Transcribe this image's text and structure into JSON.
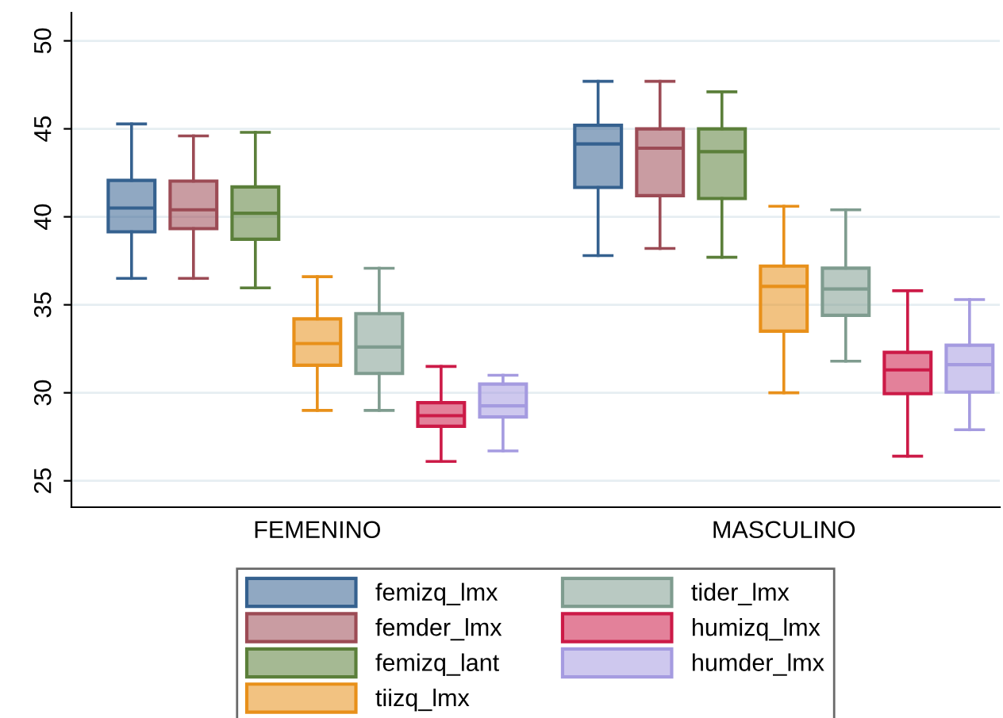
{
  "chart_data": {
    "type": "box",
    "categories": [
      "FEMENINO",
      "MASCULINO"
    ],
    "ylim": [
      23.5,
      51.6
    ],
    "yticks": [
      25,
      30,
      35,
      40,
      45,
      50
    ],
    "grid": "y",
    "legend": "bottom",
    "series": [
      {
        "name": "femizq_lmx",
        "color": "#35618f",
        "boxes": [
          {
            "low": 36.5,
            "q1": 39.15,
            "median": 40.5,
            "q3": 42.07,
            "high": 45.28
          },
          {
            "low": 37.8,
            "q1": 41.67,
            "median": 44.14,
            "q3": 45.2,
            "high": 47.7
          }
        ]
      },
      {
        "name": "femder_lmx",
        "color": "#9c4b55",
        "boxes": [
          {
            "low": 36.5,
            "q1": 39.33,
            "median": 40.4,
            "q3": 42.03,
            "high": 44.6
          },
          {
            "low": 38.2,
            "q1": 41.2,
            "median": 43.9,
            "q3": 45.0,
            "high": 47.7
          }
        ]
      },
      {
        "name": "femizq_lant",
        "color": "#5b7f3a",
        "boxes": [
          {
            "low": 35.96,
            "q1": 38.73,
            "median": 40.2,
            "q3": 41.7,
            "high": 44.8
          },
          {
            "low": 37.7,
            "q1": 41.04,
            "median": 43.7,
            "q3": 45.0,
            "high": 47.1
          }
        ]
      },
      {
        "name": "tiizq_lmx",
        "color": "#e8901a",
        "boxes": [
          {
            "low": 29.0,
            "q1": 31.57,
            "median": 32.8,
            "q3": 34.2,
            "high": 36.6
          },
          {
            "low": 30.0,
            "q1": 33.5,
            "median": 36.05,
            "q3": 37.2,
            "high": 40.6
          }
        ]
      },
      {
        "name": "tider_lmx",
        "color": "#7f9c8f",
        "boxes": [
          {
            "low": 29.0,
            "q1": 31.1,
            "median": 32.6,
            "q3": 34.5,
            "high": 37.08
          },
          {
            "low": 31.8,
            "q1": 34.4,
            "median": 35.9,
            "q3": 37.08,
            "high": 40.4
          }
        ]
      },
      {
        "name": "humizq_lmx",
        "color": "#cc1a47",
        "boxes": [
          {
            "low": 26.1,
            "q1": 28.1,
            "median": 28.7,
            "q3": 29.44,
            "high": 31.5
          },
          {
            "low": 26.4,
            "q1": 29.95,
            "median": 31.3,
            "q3": 32.3,
            "high": 35.8
          }
        ]
      },
      {
        "name": "humder_lmx",
        "color": "#a59be0",
        "boxes": [
          {
            "low": 26.7,
            "q1": 28.63,
            "median": 29.26,
            "q3": 30.5,
            "high": 31.0
          },
          {
            "low": 27.9,
            "q1": 30.04,
            "median": 31.6,
            "q3": 32.7,
            "high": 35.3
          }
        ]
      }
    ]
  }
}
